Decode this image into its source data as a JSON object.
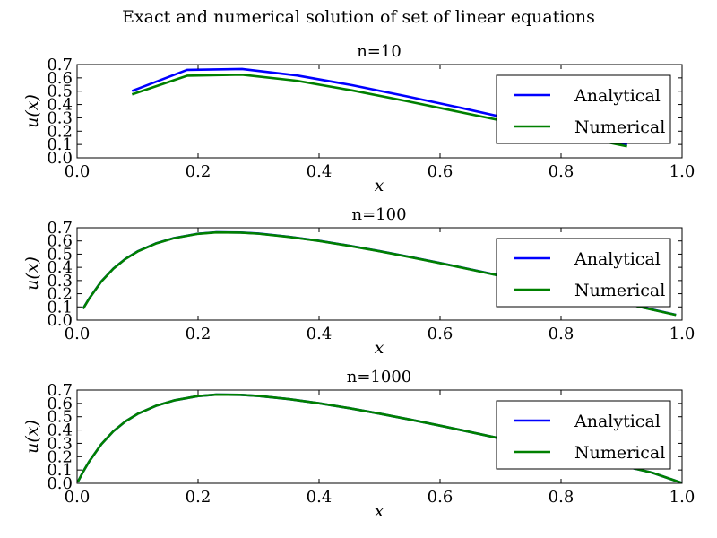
{
  "figure": {
    "title": "Exact and numerical solution of set of linear equations",
    "colors": {
      "analytical": "#0000ff",
      "numerical": "#008000",
      "frame": "#000000"
    }
  },
  "chart_data": [
    {
      "type": "line",
      "title": "n=10",
      "xlabel": "x",
      "ylabel": "u(x)",
      "xlim": [
        0.0,
        1.0
      ],
      "ylim": [
        0.0,
        0.7
      ],
      "xticks": [
        "0.0",
        "0.2",
        "0.4",
        "0.6",
        "0.8",
        "1.0"
      ],
      "yticks": [
        "0.0",
        "0.1",
        "0.2",
        "0.3",
        "0.4",
        "0.5",
        "0.6",
        "0.7"
      ],
      "legend": "upper-right",
      "series": [
        {
          "name": "Analytical",
          "color": "#0000ff",
          "x": [
            0.0909,
            0.1818,
            0.2727,
            0.3636,
            0.4545,
            0.5455,
            0.6364,
            0.7273,
            0.8182,
            0.9091
          ],
          "y": [
            0.502,
            0.66,
            0.667,
            0.618,
            0.545,
            0.461,
            0.373,
            0.281,
            0.189,
            0.095
          ]
        },
        {
          "name": "Numerical",
          "color": "#008000",
          "x": [
            0.0909,
            0.1818,
            0.2727,
            0.3636,
            0.4545,
            0.5455,
            0.6364,
            0.7273,
            0.8182,
            0.9091
          ],
          "y": [
            0.476,
            0.616,
            0.624,
            0.578,
            0.506,
            0.425,
            0.34,
            0.255,
            0.17,
            0.086
          ]
        }
      ]
    },
    {
      "type": "line",
      "title": "n=100",
      "xlabel": "x",
      "ylabel": "u(x)",
      "xlim": [
        0.0,
        1.0
      ],
      "ylim": [
        0.0,
        0.7
      ],
      "xticks": [
        "0.0",
        "0.2",
        "0.4",
        "0.6",
        "0.8",
        "1.0"
      ],
      "yticks": [
        "0.0",
        "0.1",
        "0.2",
        "0.3",
        "0.4",
        "0.5",
        "0.6",
        "0.7"
      ],
      "legend": "upper-right",
      "series": [
        {
          "name": "Analytical",
          "color": "#0000ff",
          "x": [
            0.0099,
            0.02,
            0.04,
            0.06,
            0.08,
            0.1,
            0.13,
            0.16,
            0.2,
            0.23,
            0.27,
            0.3,
            0.35,
            0.4,
            0.45,
            0.5,
            0.55,
            0.6,
            0.65,
            0.7,
            0.75,
            0.8,
            0.85,
            0.9,
            0.95,
            0.99
          ],
          "y": [
            0.087,
            0.164,
            0.293,
            0.391,
            0.465,
            0.521,
            0.581,
            0.622,
            0.655,
            0.666,
            0.664,
            0.656,
            0.632,
            0.601,
            0.564,
            0.523,
            0.479,
            0.433,
            0.385,
            0.336,
            0.286,
            0.235,
            0.184,
            0.133,
            0.081,
            0.04
          ]
        },
        {
          "name": "Numerical",
          "color": "#008000",
          "x": [
            0.0099,
            0.02,
            0.04,
            0.06,
            0.08,
            0.1,
            0.13,
            0.16,
            0.2,
            0.23,
            0.27,
            0.3,
            0.35,
            0.4,
            0.45,
            0.5,
            0.55,
            0.6,
            0.65,
            0.7,
            0.75,
            0.8,
            0.85,
            0.9,
            0.95,
            0.99
          ],
          "y": [
            0.086,
            0.163,
            0.292,
            0.39,
            0.464,
            0.52,
            0.58,
            0.621,
            0.654,
            0.665,
            0.663,
            0.655,
            0.631,
            0.6,
            0.563,
            0.522,
            0.478,
            0.432,
            0.384,
            0.335,
            0.285,
            0.234,
            0.183,
            0.132,
            0.08,
            0.039
          ]
        }
      ]
    },
    {
      "type": "line",
      "title": "n=1000",
      "xlabel": "x",
      "ylabel": "u(x)",
      "xlim": [
        0.0,
        1.0
      ],
      "ylim": [
        0.0,
        0.7
      ],
      "xticks": [
        "0.0",
        "0.2",
        "0.4",
        "0.6",
        "0.8",
        "1.0"
      ],
      "yticks": [
        "0.0",
        "0.1",
        "0.2",
        "0.3",
        "0.4",
        "0.5",
        "0.6",
        "0.7"
      ],
      "legend": "upper-right",
      "series": [
        {
          "name": "Analytical",
          "color": "#0000ff",
          "x": [
            0.001,
            0.01,
            0.02,
            0.04,
            0.06,
            0.08,
            0.1,
            0.13,
            0.16,
            0.2,
            0.23,
            0.27,
            0.3,
            0.35,
            0.4,
            0.45,
            0.5,
            0.55,
            0.6,
            0.65,
            0.7,
            0.75,
            0.8,
            0.85,
            0.9,
            0.95,
            0.999
          ],
          "y": [
            0.009,
            0.087,
            0.164,
            0.293,
            0.391,
            0.465,
            0.521,
            0.581,
            0.622,
            0.655,
            0.666,
            0.664,
            0.656,
            0.632,
            0.601,
            0.564,
            0.523,
            0.479,
            0.433,
            0.385,
            0.336,
            0.286,
            0.235,
            0.184,
            0.133,
            0.081,
            0.004
          ]
        },
        {
          "name": "Numerical",
          "color": "#008000",
          "x": [
            0.001,
            0.01,
            0.02,
            0.04,
            0.06,
            0.08,
            0.1,
            0.13,
            0.16,
            0.2,
            0.23,
            0.27,
            0.3,
            0.35,
            0.4,
            0.45,
            0.5,
            0.55,
            0.6,
            0.65,
            0.7,
            0.75,
            0.8,
            0.85,
            0.9,
            0.95,
            0.999
          ],
          "y": [
            0.009,
            0.087,
            0.164,
            0.293,
            0.391,
            0.465,
            0.521,
            0.581,
            0.622,
            0.655,
            0.666,
            0.664,
            0.656,
            0.632,
            0.601,
            0.564,
            0.523,
            0.479,
            0.433,
            0.385,
            0.336,
            0.286,
            0.235,
            0.184,
            0.133,
            0.081,
            0.004
          ]
        }
      ]
    }
  ]
}
